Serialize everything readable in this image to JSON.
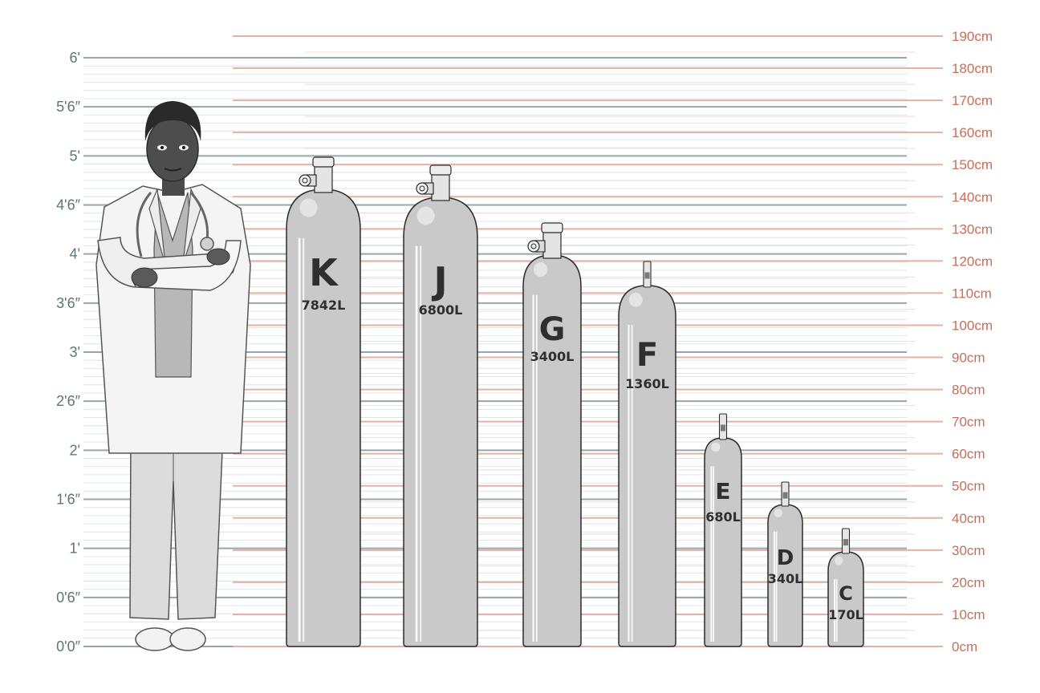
{
  "feet_scale": {
    "labels": [
      "0'0″",
      "0'6″",
      "1'",
      "1'6″",
      "2'",
      "2'6″",
      "3'",
      "3'6″",
      "4'",
      "4'6″",
      "5'",
      "5'6″",
      "6'"
    ],
    "inches": [
      0,
      6,
      12,
      18,
      24,
      30,
      36,
      42,
      48,
      54,
      60,
      66,
      72
    ],
    "color": "#93a8aa"
  },
  "cm_scale": {
    "labels": [
      "0cm",
      "10cm",
      "20cm",
      "30cm",
      "40cm",
      "50cm",
      "60cm",
      "70cm",
      "80cm",
      "90cm",
      "100cm",
      "110cm",
      "120cm",
      "130cm",
      "140cm",
      "150cm",
      "160cm",
      "170cm",
      "180cm",
      "190cm"
    ],
    "values": [
      0,
      10,
      20,
      30,
      40,
      50,
      60,
      70,
      80,
      90,
      100,
      110,
      120,
      130,
      140,
      150,
      160,
      170,
      180,
      190
    ],
    "color": "#e3b2a6"
  },
  "person": {
    "name": "doctor-figure",
    "height_ft_approx": 5.75
  },
  "cylinders": [
    {
      "letter": "K",
      "volume": "7842L",
      "valve": "large"
    },
    {
      "letter": "J",
      "volume": "6800L",
      "valve": "large"
    },
    {
      "letter": "G",
      "volume": "3400L",
      "valve": "large"
    },
    {
      "letter": "F",
      "volume": "1360L",
      "valve": "small"
    },
    {
      "letter": "E",
      "volume": "680L",
      "valve": "small"
    },
    {
      "letter": "D",
      "volume": "340L",
      "valve": "small"
    },
    {
      "letter": "C",
      "volume": "170L",
      "valve": "small"
    }
  ],
  "colors": {
    "cylinder_fill": "#c9c9c9",
    "cylinder_stroke": "#2b2b2b",
    "text": "#2f2f2f"
  }
}
